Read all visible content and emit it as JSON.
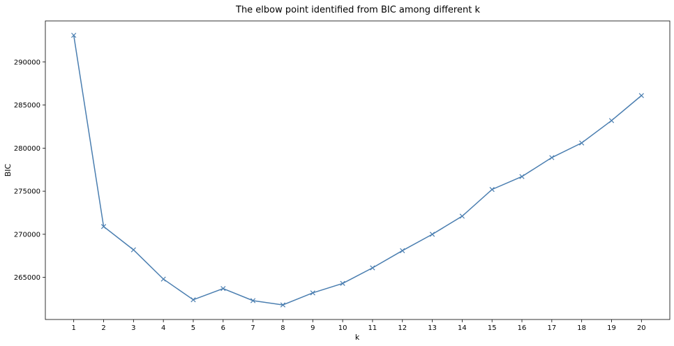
{
  "chart_data": {
    "type": "line",
    "title": "The elbow point identified from BIC among different k",
    "xlabel": "k",
    "ylabel": "BIC",
    "x": [
      1,
      2,
      3,
      4,
      5,
      6,
      7,
      8,
      9,
      10,
      11,
      12,
      13,
      14,
      15,
      16,
      17,
      18,
      19,
      20
    ],
    "series": [
      {
        "marker": "x",
        "color": "#4a7eb0",
        "values": [
          293100,
          270900,
          268200,
          264800,
          262400,
          263700,
          262300,
          261800,
          263200,
          264300,
          266100,
          268100,
          270000,
          272100,
          275200,
          276700,
          278900,
          280600,
          283200,
          286100
        ]
      }
    ],
    "xticks": [
      1,
      2,
      3,
      4,
      5,
      6,
      7,
      8,
      9,
      10,
      11,
      12,
      13,
      14,
      15,
      16,
      17,
      18,
      19,
      20
    ],
    "yticks": [
      265000,
      270000,
      275000,
      280000,
      285000,
      290000
    ],
    "xlim": [
      0.05,
      20.95
    ],
    "ylim": [
      260110,
      294765
    ],
    "grid": false,
    "legend": "none"
  }
}
